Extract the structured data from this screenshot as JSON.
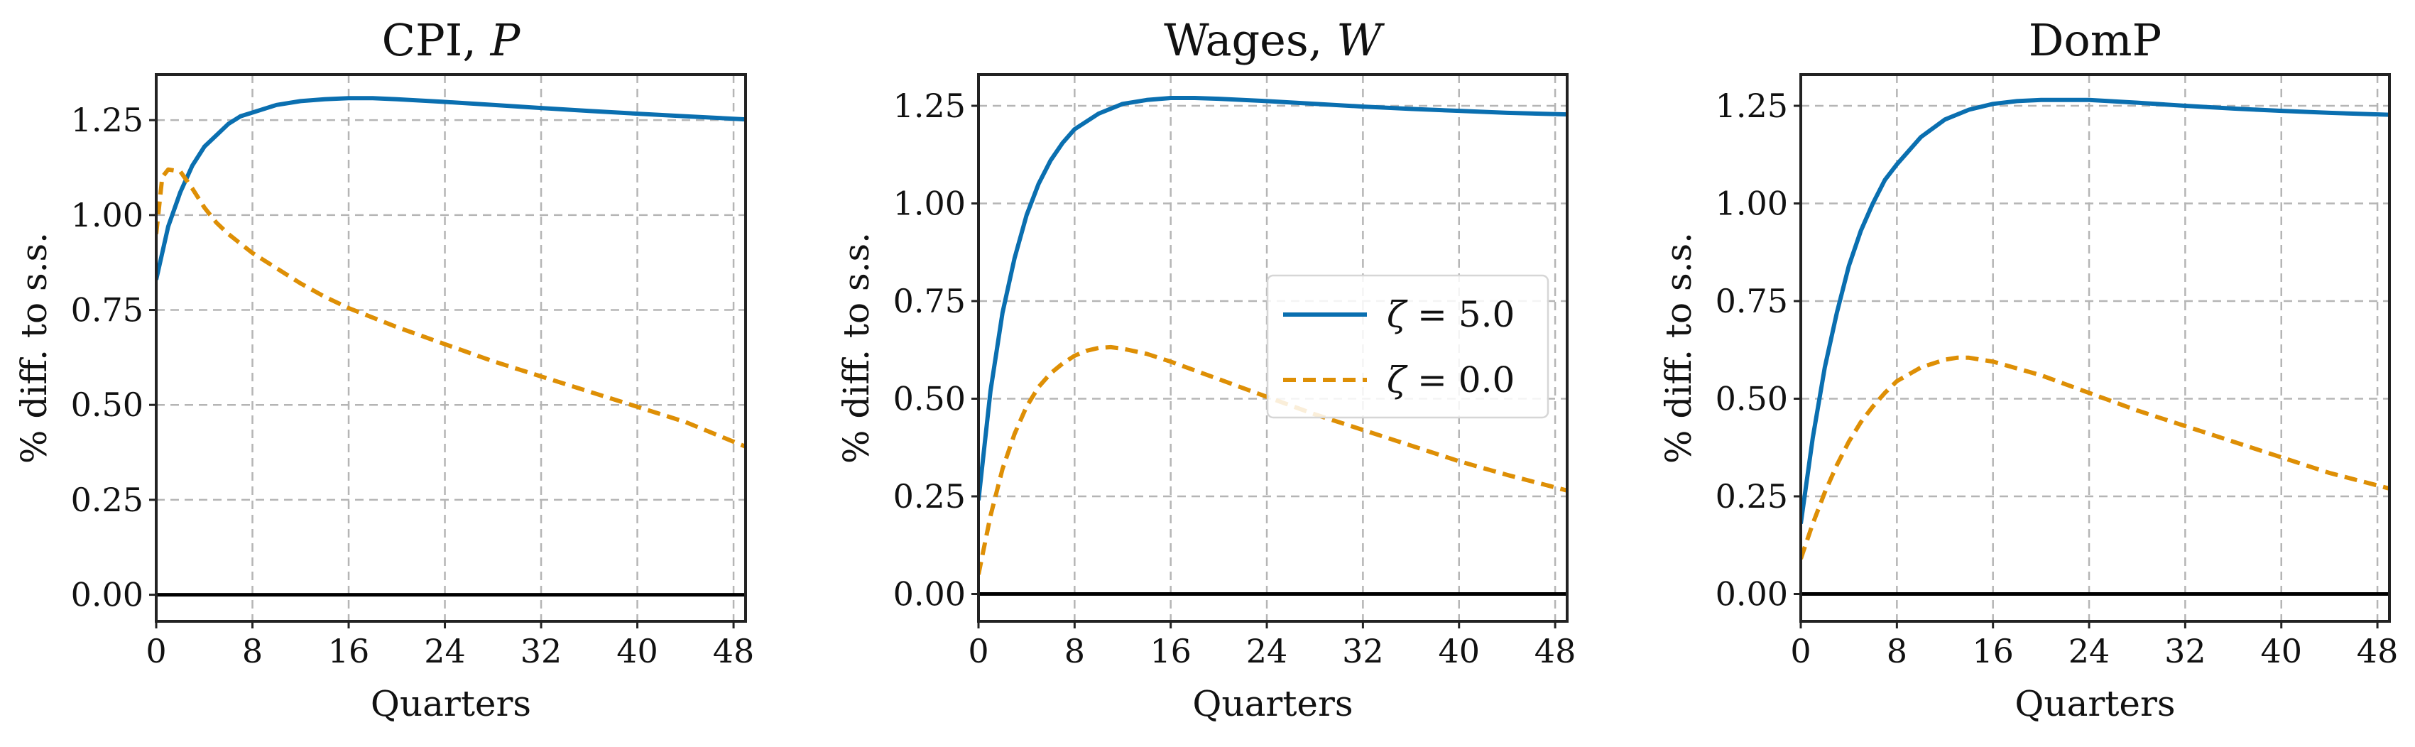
{
  "colors": {
    "zeta5": "#0a6fb0",
    "zeta0": "#de8f05"
  },
  "chart_data": [
    {
      "type": "line",
      "title": "CPI, ",
      "title_var": "P",
      "xlabel": "Quarters",
      "ylabel": "% diff. to s.s.",
      "xlim": [
        0,
        49
      ],
      "ylim": [
        -0.07,
        1.37
      ],
      "xticks": [
        0,
        8,
        16,
        24,
        32,
        40,
        48
      ],
      "yticks": [
        0.0,
        0.25,
        0.5,
        0.75,
        1.0,
        1.25
      ],
      "ytick_labels": [
        "0.00",
        "0.25",
        "0.50",
        "0.75",
        "1.00",
        "1.25"
      ],
      "grid": true,
      "series": [
        {
          "key": "zeta5",
          "style": "solid",
          "x": [
            0,
            1,
            2,
            3,
            4,
            5,
            6,
            7,
            8,
            10,
            12,
            14,
            16,
            18,
            20,
            24,
            28,
            32,
            36,
            40,
            44,
            49
          ],
          "y": [
            0.83,
            0.97,
            1.06,
            1.13,
            1.18,
            1.21,
            1.24,
            1.26,
            1.27,
            1.29,
            1.3,
            1.305,
            1.308,
            1.308,
            1.305,
            1.298,
            1.29,
            1.282,
            1.274,
            1.267,
            1.26,
            1.252
          ]
        },
        {
          "key": "zeta0",
          "style": "dashed",
          "x": [
            0,
            0.5,
            1,
            2,
            3,
            4,
            5,
            6,
            8,
            10,
            12,
            14,
            16,
            20,
            24,
            28,
            32,
            36,
            40,
            44,
            49
          ],
          "y": [
            0.95,
            1.1,
            1.12,
            1.115,
            1.07,
            1.02,
            0.98,
            0.95,
            0.9,
            0.86,
            0.82,
            0.785,
            0.755,
            0.705,
            0.66,
            0.615,
            0.575,
            0.535,
            0.495,
            0.455,
            0.39
          ]
        }
      ]
    },
    {
      "type": "line",
      "title": "Wages, ",
      "title_var": "W",
      "xlabel": "Quarters",
      "ylabel": "% diff. to s.s.",
      "xlim": [
        0,
        49
      ],
      "ylim": [
        -0.07,
        1.33
      ],
      "xticks": [
        0,
        8,
        16,
        24,
        32,
        40,
        48
      ],
      "yticks": [
        0.0,
        0.25,
        0.5,
        0.75,
        1.0,
        1.25
      ],
      "ytick_labels": [
        "0.00",
        "0.25",
        "0.50",
        "0.75",
        "1.00",
        "1.25"
      ],
      "grid": true,
      "legend": {
        "placement": "center-right",
        "entries": [
          {
            "key": "zeta5",
            "symbol": "ζ",
            "label": " = 5.0"
          },
          {
            "key": "zeta0",
            "symbol": "ζ",
            "label": " = 0.0"
          }
        ]
      },
      "series": [
        {
          "key": "zeta5",
          "style": "solid",
          "x": [
            0,
            1,
            2,
            3,
            4,
            5,
            6,
            7,
            8,
            10,
            12,
            14,
            16,
            18,
            20,
            24,
            28,
            32,
            36,
            40,
            44,
            49
          ],
          "y": [
            0.24,
            0.52,
            0.72,
            0.86,
            0.97,
            1.05,
            1.11,
            1.155,
            1.19,
            1.23,
            1.255,
            1.265,
            1.27,
            1.27,
            1.268,
            1.262,
            1.255,
            1.248,
            1.242,
            1.237,
            1.232,
            1.228
          ]
        },
        {
          "key": "zeta0",
          "style": "dashed",
          "x": [
            0,
            1,
            2,
            3,
            4,
            5,
            6,
            7,
            8,
            9,
            10,
            11,
            12,
            14,
            16,
            20,
            24,
            28,
            32,
            36,
            40,
            44,
            49
          ],
          "y": [
            0.05,
            0.2,
            0.32,
            0.41,
            0.48,
            0.53,
            0.565,
            0.59,
            0.61,
            0.623,
            0.63,
            0.632,
            0.628,
            0.615,
            0.595,
            0.55,
            0.505,
            0.46,
            0.42,
            0.38,
            0.34,
            0.305,
            0.265
          ]
        }
      ]
    },
    {
      "type": "line",
      "title": "DomP",
      "title_var": "",
      "xlabel": "Quarters",
      "ylabel": "% diff. to s.s.",
      "xlim": [
        0,
        49
      ],
      "ylim": [
        -0.07,
        1.33
      ],
      "xticks": [
        0,
        8,
        16,
        24,
        32,
        40,
        48
      ],
      "yticks": [
        0.0,
        0.25,
        0.5,
        0.75,
        1.0,
        1.25
      ],
      "ytick_labels": [
        "0.00",
        "0.25",
        "0.50",
        "0.75",
        "1.00",
        "1.25"
      ],
      "grid": true,
      "series": [
        {
          "key": "zeta5",
          "style": "solid",
          "x": [
            0,
            1,
            2,
            3,
            4,
            5,
            6,
            7,
            8,
            10,
            12,
            14,
            16,
            18,
            20,
            24,
            28,
            32,
            36,
            40,
            44,
            49
          ],
          "y": [
            0.18,
            0.4,
            0.58,
            0.72,
            0.84,
            0.93,
            1.0,
            1.06,
            1.1,
            1.17,
            1.215,
            1.24,
            1.255,
            1.262,
            1.265,
            1.265,
            1.258,
            1.25,
            1.243,
            1.237,
            1.232,
            1.227
          ]
        },
        {
          "key": "zeta0",
          "style": "dashed",
          "x": [
            0,
            1,
            2,
            3,
            4,
            5,
            6,
            7,
            8,
            10,
            12,
            13,
            14,
            16,
            20,
            24,
            28,
            32,
            36,
            40,
            44,
            49
          ],
          "y": [
            0.09,
            0.18,
            0.26,
            0.33,
            0.39,
            0.44,
            0.48,
            0.515,
            0.545,
            0.58,
            0.6,
            0.605,
            0.605,
            0.595,
            0.56,
            0.515,
            0.47,
            0.43,
            0.39,
            0.35,
            0.31,
            0.27
          ]
        }
      ]
    }
  ]
}
